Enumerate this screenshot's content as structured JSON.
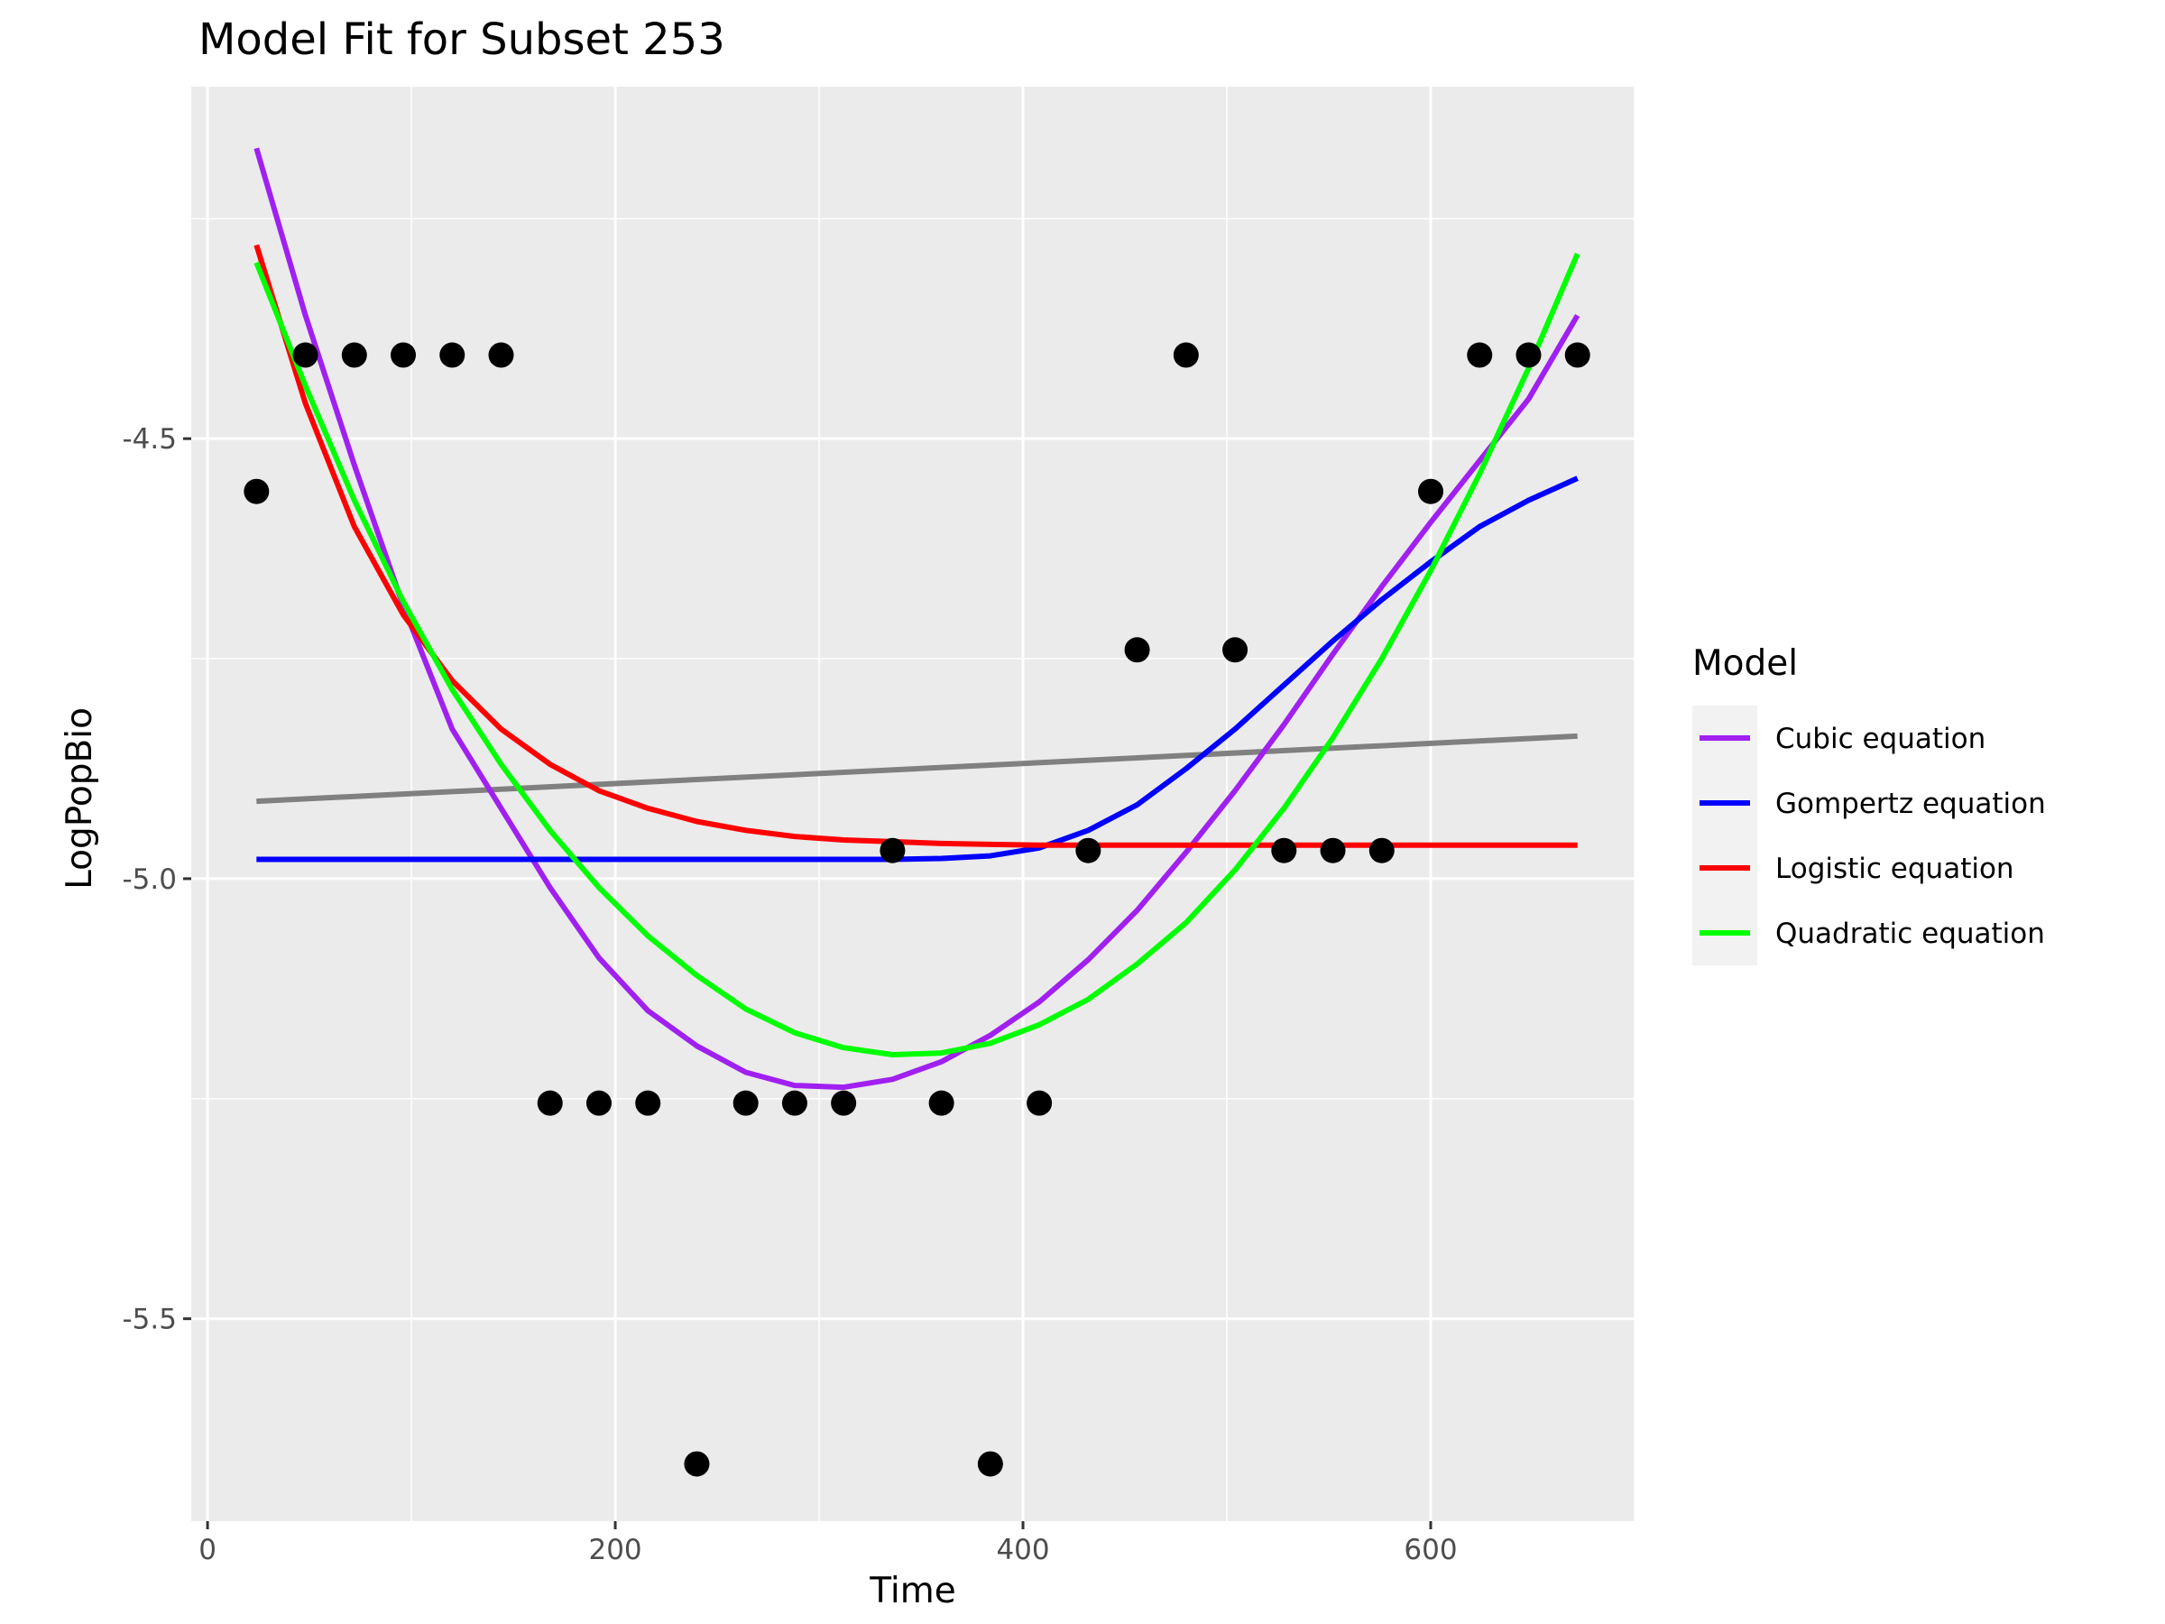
{
  "chart_data": {
    "type": "scatter",
    "title": "Model Fit for Subset 253",
    "xlabel": "Time",
    "ylabel": "LogPopBio",
    "xlim": [
      -8,
      700
    ],
    "ylim": [
      -5.73,
      -4.1
    ],
    "x_ticks": [
      0,
      200,
      400,
      600
    ],
    "x_tick_labels": [
      "0",
      "200",
      "400",
      "600"
    ],
    "y_ticks": [
      -4.5,
      -5.0,
      -5.5
    ],
    "y_tick_labels": [
      "-4.5",
      "-5.0",
      "-5.5"
    ],
    "grid": true,
    "panel_background": "#ebebeb",
    "grid_color": "#ffffff",
    "legend": {
      "title": "Model",
      "position": "right",
      "entries": [
        {
          "label": "Cubic equation",
          "color": "#a020f0"
        },
        {
          "label": "Gompertz equation",
          "color": "#0000ff"
        },
        {
          "label": "Logistic equation",
          "color": "#ff0000"
        },
        {
          "label": "Quadratic equation",
          "color": "#00ff00"
        }
      ]
    },
    "points": {
      "color": "#000000",
      "x": [
        24,
        48,
        72,
        96,
        120,
        144,
        168,
        192,
        216,
        240,
        264,
        288,
        312,
        336,
        360,
        384,
        408,
        432,
        456,
        480,
        504,
        528,
        552,
        576,
        600,
        624,
        648,
        672
      ],
      "y": [
        -4.56,
        -4.405,
        -4.405,
        -4.405,
        -4.405,
        -4.405,
        -5.255,
        -5.255,
        -5.255,
        -5.665,
        -5.255,
        -5.255,
        -5.255,
        -4.968,
        -5.255,
        -5.665,
        -5.255,
        -4.968,
        -4.74,
        -4.405,
        -4.74,
        -4.968,
        -4.968,
        -4.968,
        -4.56,
        -4.405,
        -4.405,
        -4.405
      ]
    },
    "series": [
      {
        "color": "#808080",
        "x": [
          24,
          672
        ],
        "y": [
          -4.912,
          -4.838
        ]
      },
      {
        "name": "Cubic equation",
        "color": "#a020f0",
        "x": [
          24,
          48,
          72,
          96,
          120,
          144,
          168,
          192,
          216,
          240,
          264,
          288,
          312,
          336,
          360,
          384,
          408,
          432,
          456,
          480,
          504,
          528,
          552,
          576,
          600,
          624,
          648,
          672
        ],
        "y": [
          -4.17,
          -4.36,
          -4.53,
          -4.69,
          -4.83,
          -4.92,
          -5.01,
          -5.09,
          -5.15,
          -5.19,
          -5.22,
          -5.235,
          -5.237,
          -5.228,
          -5.208,
          -5.178,
          -5.14,
          -5.092,
          -5.036,
          -4.97,
          -4.9,
          -4.825,
          -4.745,
          -4.668,
          -4.595,
          -4.525,
          -4.455,
          -4.36
        ]
      },
      {
        "name": "Gompertz equation",
        "color": "#0000ff",
        "x": [
          24,
          48,
          72,
          96,
          120,
          144,
          168,
          192,
          216,
          240,
          264,
          288,
          312,
          336,
          360,
          384,
          408,
          432,
          456,
          480,
          504,
          528,
          552,
          576,
          600,
          624,
          648,
          672
        ],
        "y": [
          -4.978,
          -4.978,
          -4.978,
          -4.978,
          -4.978,
          -4.978,
          -4.978,
          -4.978,
          -4.978,
          -4.978,
          -4.978,
          -4.978,
          -4.978,
          -4.978,
          -4.977,
          -4.974,
          -4.965,
          -4.945,
          -4.916,
          -4.875,
          -4.83,
          -4.78,
          -4.73,
          -4.683,
          -4.64,
          -4.6,
          -4.57,
          -4.545
        ]
      },
      {
        "name": "Logistic equation",
        "color": "#ff0000",
        "x": [
          24,
          48,
          72,
          96,
          120,
          144,
          168,
          192,
          216,
          240,
          264,
          288,
          312,
          336,
          360,
          384,
          408,
          432,
          456,
          480,
          504,
          528,
          552,
          576,
          600,
          624,
          648,
          672
        ],
        "y": [
          -4.28,
          -4.46,
          -4.6,
          -4.7,
          -4.775,
          -4.83,
          -4.87,
          -4.9,
          -4.92,
          -4.935,
          -4.945,
          -4.952,
          -4.956,
          -4.958,
          -4.96,
          -4.961,
          -4.962,
          -4.962,
          -4.962,
          -4.962,
          -4.962,
          -4.962,
          -4.962,
          -4.962,
          -4.962,
          -4.962,
          -4.962,
          -4.962
        ]
      },
      {
        "name": "Quadratic equation",
        "color": "#00ff00",
        "x": [
          24,
          48,
          72,
          96,
          120,
          144,
          168,
          192,
          216,
          240,
          264,
          288,
          312,
          336,
          360,
          384,
          408,
          432,
          456,
          480,
          504,
          528,
          552,
          576,
          600,
          624,
          648,
          672
        ],
        "y": [
          -4.3,
          -4.44,
          -4.57,
          -4.685,
          -4.785,
          -4.87,
          -4.945,
          -5.01,
          -5.065,
          -5.11,
          -5.148,
          -5.175,
          -5.192,
          -5.2,
          -5.198,
          -5.187,
          -5.166,
          -5.137,
          -5.097,
          -5.05,
          -4.99,
          -4.92,
          -4.84,
          -4.75,
          -4.65,
          -4.54,
          -4.42,
          -4.29
        ]
      }
    ]
  }
}
